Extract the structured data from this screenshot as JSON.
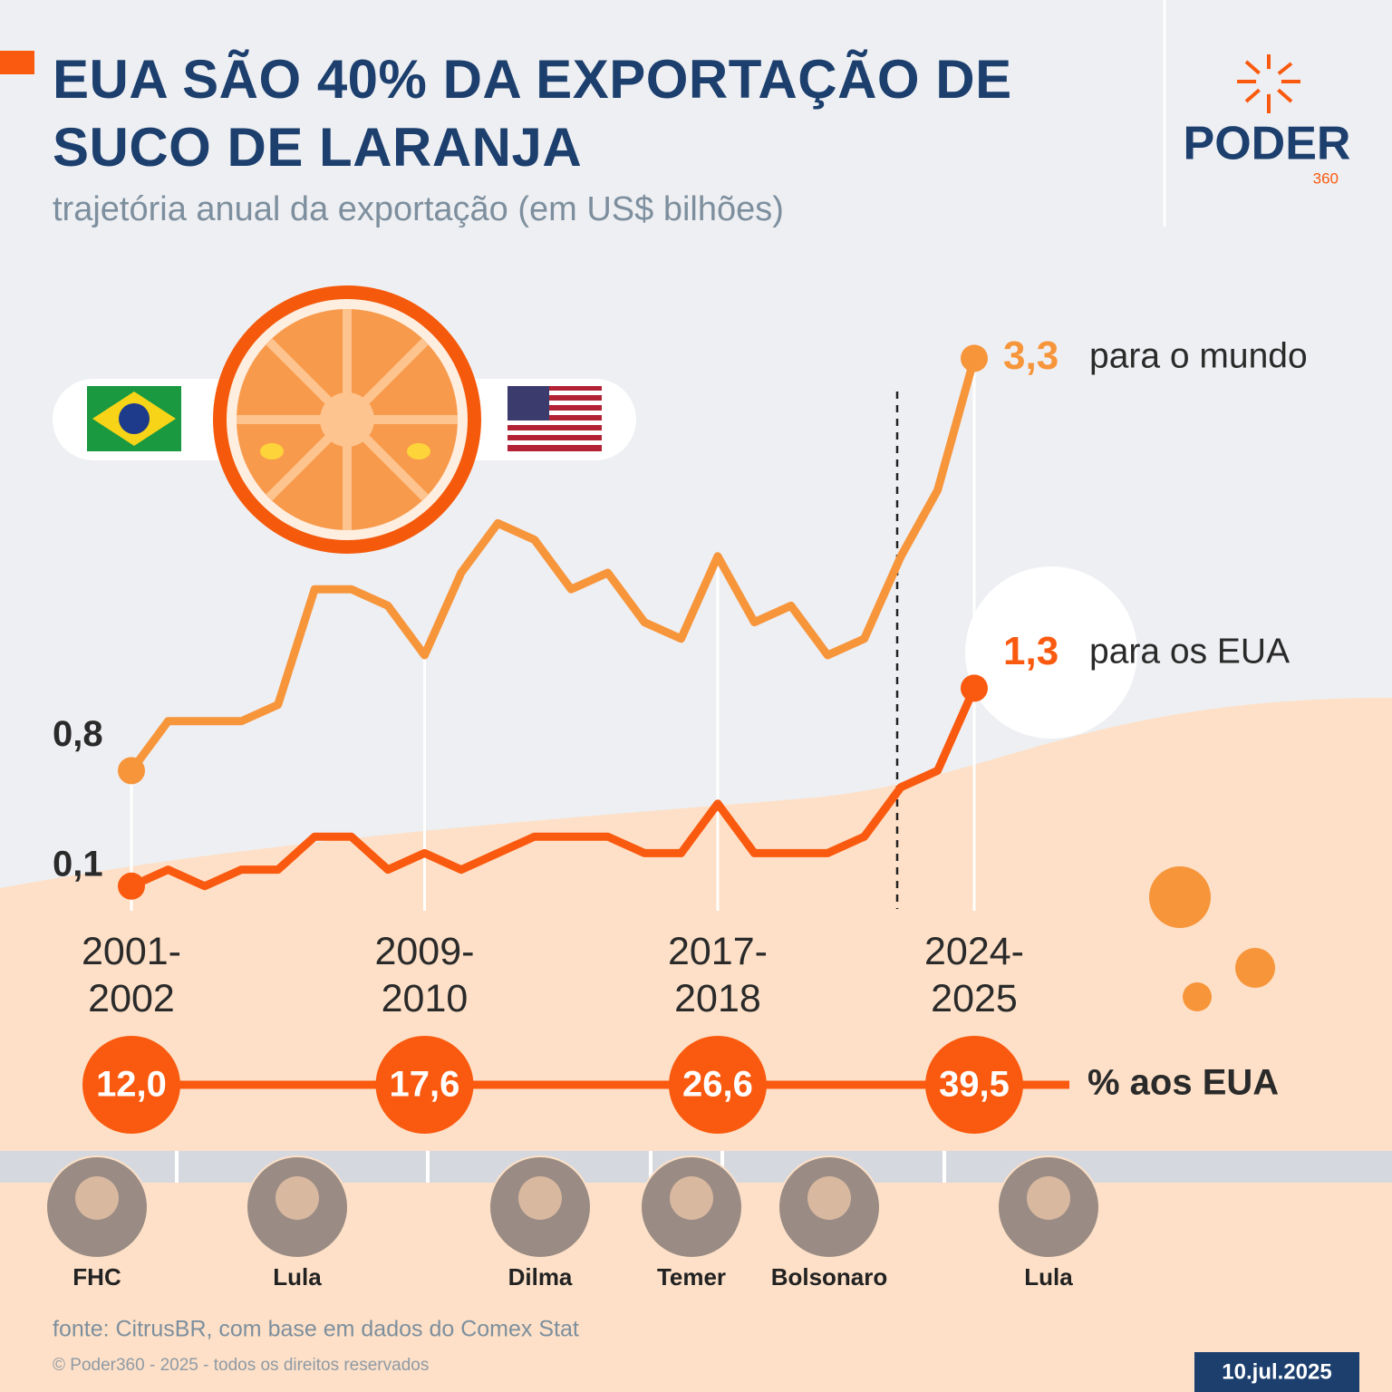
{
  "header": {
    "title": "EUA SÃO 40% DA EXPORTAÇÃO DE SUCO DE LARANJA",
    "subtitle": "trajetória anual da exportação (em US$ bilhões)",
    "logo": "PODER",
    "logo_sub": "360"
  },
  "chart_data": {
    "type": "line",
    "categories": [
      "2001-2002",
      null,
      null,
      null,
      null,
      null,
      null,
      null,
      "2009-2010",
      null,
      null,
      null,
      null,
      null,
      null,
      null,
      "2017-2018",
      null,
      null,
      null,
      null,
      null,
      null,
      "2024-2025"
    ],
    "ylim": [
      0,
      3.5
    ],
    "series": [
      {
        "name": "para o mundo",
        "color": "#f7953b",
        "values": [
          0.8,
          1.1,
          1.1,
          1.1,
          1.2,
          1.9,
          1.9,
          1.8,
          1.5,
          2.0,
          2.3,
          2.2,
          1.9,
          2.0,
          1.7,
          1.6,
          2.1,
          1.7,
          1.8,
          1.5,
          1.6,
          2.1,
          2.5,
          3.3
        ],
        "value_labels": [
          "0,8",
          null,
          null,
          null,
          null,
          null,
          null,
          null,
          null,
          null,
          null,
          null,
          null,
          null,
          null,
          null,
          null,
          null,
          null,
          null,
          null,
          null,
          null,
          "3,3"
        ]
      },
      {
        "name": "para os EUA",
        "color": "#fa5a0f",
        "values": [
          0.1,
          0.2,
          0.1,
          0.2,
          0.2,
          0.4,
          0.4,
          0.2,
          0.3,
          0.2,
          0.3,
          0.4,
          0.4,
          0.4,
          0.3,
          0.3,
          0.6,
          0.3,
          0.3,
          0.3,
          0.4,
          0.7,
          0.8,
          1.3
        ],
        "value_labels": [
          "0,1",
          null,
          null,
          null,
          null,
          null,
          null,
          null,
          null,
          null,
          null,
          null,
          null,
          null,
          null,
          null,
          null,
          null,
          null,
          null,
          null,
          null,
          null,
          "1,3"
        ]
      }
    ],
    "share": {
      "label": "% aos EUA",
      "values": [
        12.0,
        17.6,
        26.6,
        39.5
      ],
      "value_labels": [
        "12,0",
        "17,6",
        "26,6",
        "39,5"
      ]
    }
  },
  "presidents": [
    "FHC",
    "Lula",
    "Dilma",
    "Temer",
    "Bolsonaro",
    "Lula"
  ],
  "footer": {
    "source": "fonte: CitrusBR, com base em dados do Comex Stat",
    "copyright": "© Poder360 - 2025 - todos os direitos reservados",
    "date": "10.jul.2025"
  }
}
